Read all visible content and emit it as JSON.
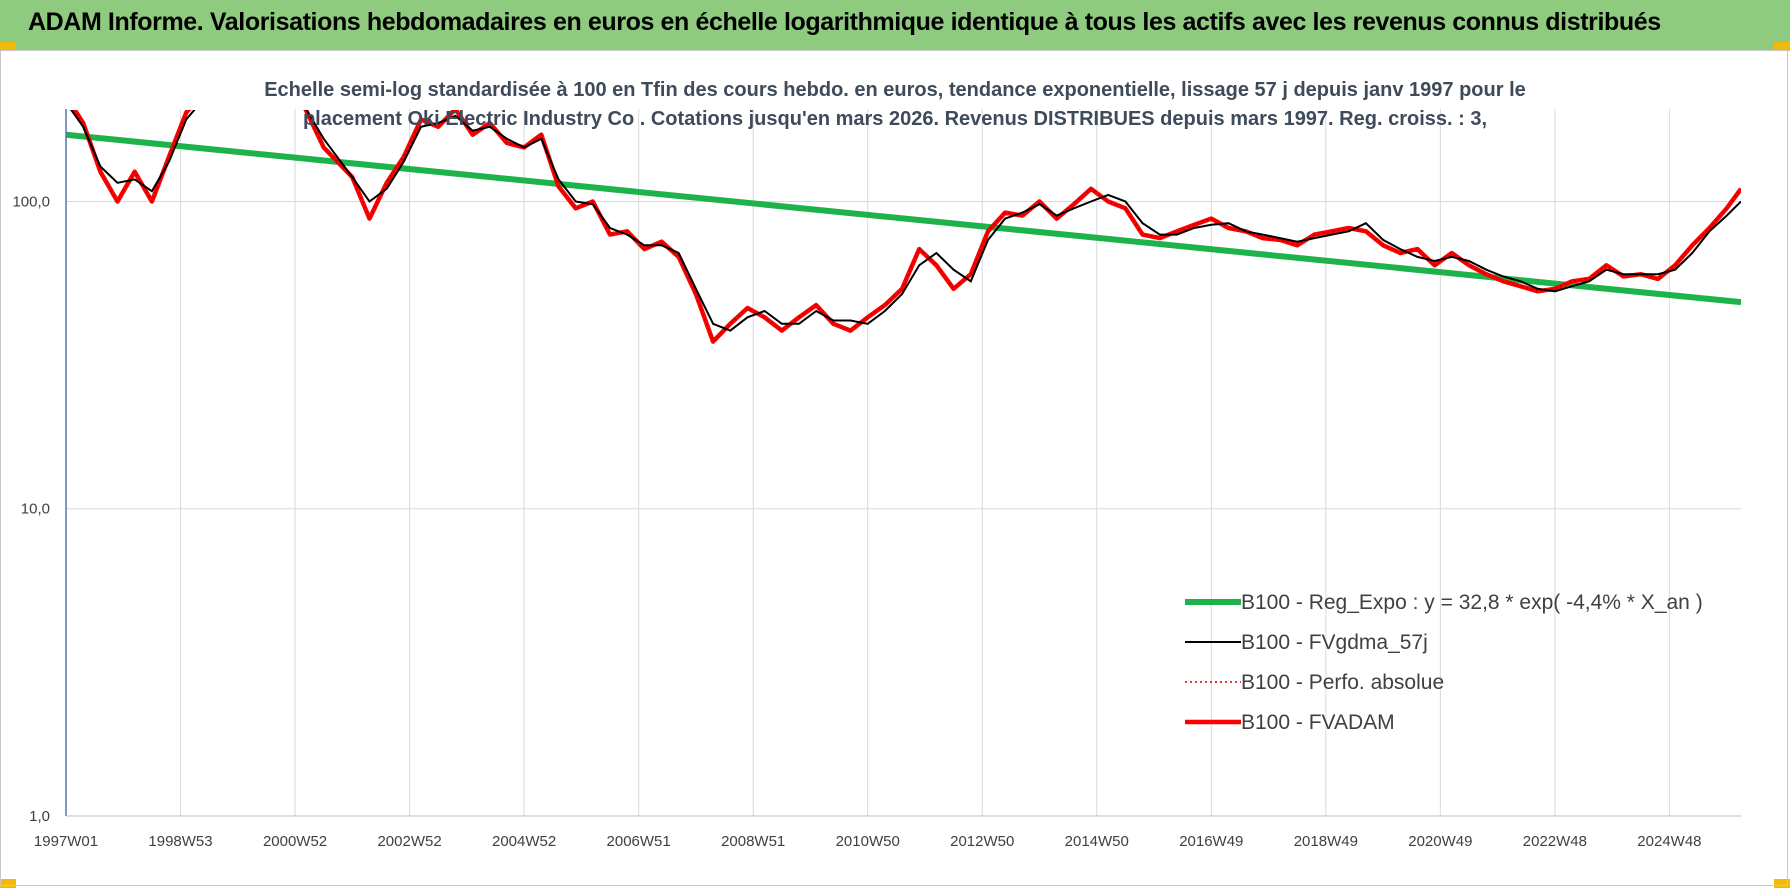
{
  "header": {
    "title": "ADAM Informe. Valorisations hebdomadaires en euros en échelle logarithmique identique à tous les actifs avec les revenus connus distribués"
  },
  "colors": {
    "header_bg": "#8ecb7e",
    "corner_tabs": "#f2b90f",
    "reg_expo": "#1db34a",
    "fvgdma": "#000000",
    "perfo": "#c00000",
    "fvadam": "#ff0000",
    "grid": "#d9d9d9"
  },
  "chart_data": {
    "type": "line",
    "title_lines": [
      "Echelle semi-log standardisée à 100 en Tfin des cours hebdo. en euros, tendance exponentielle, lissage 57 j depuis janv 1997 pour le",
      "placement Oki Electric Industry Co . Cotations jusqu'en mars 2026. Revenus DISTRIBUES depuis mars 1997. Reg. croiss. : 3,"
    ],
    "y_scale": "log",
    "ylim": [
      1,
      200
    ],
    "y_ticks": [
      1,
      10,
      100
    ],
    "y_tick_labels": [
      "1,0",
      "10,0",
      "100,0"
    ],
    "xlim": [
      1997.0,
      2026.25
    ],
    "x_tick_labels": [
      "1997W01",
      "1998W53",
      "2000W52",
      "2002W52",
      "2004W52",
      "2006W51",
      "2008W51",
      "2010W50",
      "2012W50",
      "2014W50",
      "2016W49",
      "2018W49",
      "2020W49",
      "2022W48",
      "2024W48"
    ],
    "x_ticks": [
      1997.0,
      1999.0,
      2001.0,
      2003.0,
      2005.0,
      2007.0,
      2009.0,
      2011.0,
      2013.0,
      2015.0,
      2017.0,
      2019.0,
      2021.0,
      2023.0,
      2025.0
    ],
    "grid": "vertical and horizontal",
    "legend_position": "lower-right",
    "series": [
      {
        "name": "B100 - Reg_Expo : y = 32,8 * exp( -4,4% * X_an )",
        "style": "thick-line",
        "x": [
          1997.0,
          2026.25
        ],
        "values": [
          165,
          47
        ]
      },
      {
        "name": "B100 - FVgdma_57j",
        "style": "thin-line",
        "x": [
          1997.0,
          1997.3,
          1997.6,
          1997.9,
          1998.2,
          1998.5,
          1998.8,
          1999.1,
          1999.4,
          1999.7,
          2000.0,
          2001.0,
          2001.5,
          2002.0,
          2002.3,
          2002.6,
          2002.9,
          2003.2,
          2003.5,
          2003.8,
          2004.1,
          2004.4,
          2004.7,
          2005.0,
          2005.3,
          2005.6,
          2005.9,
          2006.2,
          2006.5,
          2006.8,
          2007.1,
          2007.4,
          2007.7,
          2008.0,
          2008.3,
          2008.6,
          2008.9,
          2009.2,
          2009.5,
          2009.8,
          2010.1,
          2010.4,
          2010.7,
          2011.0,
          2011.3,
          2011.6,
          2011.9,
          2012.2,
          2012.5,
          2012.8,
          2013.1,
          2013.4,
          2013.7,
          2014.0,
          2014.3,
          2014.6,
          2014.9,
          2015.2,
          2015.5,
          2015.8,
          2016.1,
          2016.4,
          2016.7,
          2017.0,
          2017.3,
          2017.6,
          2017.9,
          2018.2,
          2018.5,
          2018.8,
          2019.1,
          2019.4,
          2019.7,
          2020.0,
          2020.3,
          2020.6,
          2020.9,
          2021.2,
          2021.5,
          2021.8,
          2022.1,
          2022.4,
          2022.7,
          2023.0,
          2023.3,
          2023.6,
          2023.9,
          2024.2,
          2024.5,
          2024.8,
          2025.1,
          2025.4,
          2025.7,
          2026.0,
          2026.25
        ],
        "values": [
          210,
          175,
          130,
          115,
          118,
          108,
          135,
          185,
          215,
          220,
          240,
          230,
          160,
          120,
          100,
          110,
          135,
          175,
          180,
          190,
          170,
          175,
          160,
          150,
          160,
          118,
          100,
          98,
          82,
          78,
          72,
          72,
          68,
          52,
          40,
          38,
          42,
          44,
          40,
          40,
          44,
          41,
          41,
          40,
          44,
          50,
          62,
          68,
          60,
          55,
          75,
          88,
          92,
          98,
          90,
          95,
          100,
          105,
          100,
          85,
          78,
          78,
          82,
          84,
          85,
          80,
          78,
          76,
          74,
          76,
          78,
          80,
          85,
          75,
          70,
          66,
          64,
          66,
          64,
          60,
          57,
          55,
          52,
          51,
          53,
          55,
          60,
          58,
          58,
          58,
          60,
          68,
          80,
          90,
          100
        ]
      },
      {
        "name": "B100 - Perfo. absolue",
        "style": "dotted-line",
        "x": [
          1997.0,
          1997.3,
          1997.6,
          1997.9,
          1998.2,
          1998.5,
          1998.8,
          1999.1,
          1999.4,
          1999.7,
          2000.0,
          2001.0,
          2001.5,
          2002.0,
          2002.3,
          2002.6,
          2002.9,
          2003.2,
          2003.5,
          2003.8,
          2004.1,
          2004.4,
          2004.7,
          2005.0,
          2005.3,
          2005.6,
          2005.9,
          2006.2,
          2006.5,
          2006.8,
          2007.1,
          2007.4,
          2007.7,
          2008.0,
          2008.3,
          2008.6,
          2008.9,
          2009.2,
          2009.5,
          2009.8,
          2010.1,
          2010.4,
          2010.7,
          2011.0,
          2011.3,
          2011.6,
          2011.9,
          2012.2,
          2012.5,
          2012.8,
          2013.1,
          2013.4,
          2013.7,
          2014.0,
          2014.3,
          2014.6,
          2014.9,
          2015.2,
          2015.5,
          2015.8,
          2016.1,
          2016.4,
          2016.7,
          2017.0,
          2017.3,
          2017.6,
          2017.9,
          2018.2,
          2018.5,
          2018.8,
          2019.1,
          2019.4,
          2019.7,
          2020.0,
          2020.3,
          2020.6,
          2020.9,
          2021.2,
          2021.5,
          2021.8,
          2022.1,
          2022.4,
          2022.7,
          2023.0,
          2023.3,
          2023.6,
          2023.9,
          2024.2,
          2024.5,
          2024.8,
          2025.1,
          2025.4,
          2025.7,
          2026.0,
          2026.25
        ],
        "values": [
          220,
          180,
          125,
          100,
          125,
          100,
          140,
          195,
          225,
          215,
          240,
          235,
          150,
          120,
          88,
          115,
          140,
          185,
          175,
          200,
          165,
          180,
          155,
          150,
          165,
          112,
          95,
          100,
          78,
          80,
          70,
          74,
          66,
          50,
          35,
          40,
          45,
          42,
          38,
          42,
          46,
          40,
          38,
          42,
          46,
          52,
          70,
          62,
          52,
          58,
          80,
          92,
          90,
          100,
          88,
          98,
          110,
          100,
          95,
          78,
          76,
          80,
          84,
          88,
          82,
          80,
          76,
          75,
          72,
          78,
          80,
          82,
          80,
          72,
          68,
          70,
          62,
          68,
          62,
          58,
          55,
          53,
          51,
          52,
          55,
          56,
          62,
          57,
          58,
          56,
          62,
          72,
          82,
          95,
          110
        ]
      },
      {
        "name": "B100 - FVADAM",
        "style": "thick-red-line",
        "x": [
          1997.0,
          1997.3,
          1997.6,
          1997.9,
          1998.2,
          1998.5,
          1998.8,
          1999.1,
          1999.4,
          1999.7,
          2000.0,
          2001.0,
          2001.5,
          2002.0,
          2002.3,
          2002.6,
          2002.9,
          2003.2,
          2003.5,
          2003.8,
          2004.1,
          2004.4,
          2004.7,
          2005.0,
          2005.3,
          2005.6,
          2005.9,
          2006.2,
          2006.5,
          2006.8,
          2007.1,
          2007.4,
          2007.7,
          2008.0,
          2008.3,
          2008.6,
          2008.9,
          2009.2,
          2009.5,
          2009.8,
          2010.1,
          2010.4,
          2010.7,
          2011.0,
          2011.3,
          2011.6,
          2011.9,
          2012.2,
          2012.5,
          2012.8,
          2013.1,
          2013.4,
          2013.7,
          2014.0,
          2014.3,
          2014.6,
          2014.9,
          2015.2,
          2015.5,
          2015.8,
          2016.1,
          2016.4,
          2016.7,
          2017.0,
          2017.3,
          2017.6,
          2017.9,
          2018.2,
          2018.5,
          2018.8,
          2019.1,
          2019.4,
          2019.7,
          2020.0,
          2020.3,
          2020.6,
          2020.9,
          2021.2,
          2021.5,
          2021.8,
          2022.1,
          2022.4,
          2022.7,
          2023.0,
          2023.3,
          2023.6,
          2023.9,
          2024.2,
          2024.5,
          2024.8,
          2025.1,
          2025.4,
          2025.7,
          2026.0,
          2026.25
        ],
        "values": [
          220,
          180,
          125,
          100,
          125,
          100,
          140,
          195,
          225,
          215,
          240,
          235,
          150,
          120,
          88,
          115,
          140,
          185,
          175,
          200,
          165,
          180,
          155,
          150,
          165,
          112,
          95,
          100,
          78,
          80,
          70,
          74,
          66,
          50,
          35,
          40,
          45,
          42,
          38,
          42,
          46,
          40,
          38,
          42,
          46,
          52,
          70,
          62,
          52,
          58,
          80,
          92,
          90,
          100,
          88,
          98,
          110,
          100,
          95,
          78,
          76,
          80,
          84,
          88,
          82,
          80,
          76,
          75,
          72,
          78,
          80,
          82,
          80,
          72,
          68,
          70,
          62,
          68,
          62,
          58,
          55,
          53,
          51,
          52,
          55,
          56,
          62,
          57,
          58,
          56,
          62,
          72,
          82,
          95,
          110
        ]
      }
    ]
  }
}
